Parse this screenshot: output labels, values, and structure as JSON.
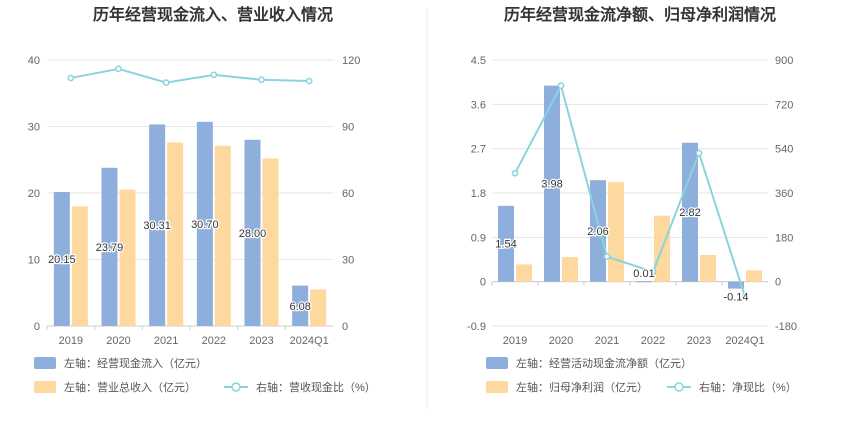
{
  "chart_data": [
    {
      "type": "bar+line",
      "title": "历年经营现金流入、营业收入情况",
      "categories": [
        "2019",
        "2020",
        "2021",
        "2022",
        "2023",
        "2024Q1"
      ],
      "left_axis": {
        "min": 0,
        "max": 40,
        "ticks": [
          "0",
          "10",
          "20",
          "30",
          "40"
        ]
      },
      "right_axis": {
        "min": 0,
        "max": 120,
        "ticks": [
          "0",
          "30",
          "60",
          "90",
          "120"
        ]
      },
      "series": [
        {
          "name": "左轴：经营现金流入（亿元）",
          "type": "bar",
          "axis": "left",
          "color": "#8eaedb",
          "values": [
            20.15,
            23.79,
            30.31,
            30.7,
            28.0,
            6.08
          ],
          "labels": [
            "20.15",
            "23.79",
            "30.31",
            "30.70",
            "28.00",
            "6.08"
          ]
        },
        {
          "name": "左轴：营业总收入（亿元）",
          "type": "bar",
          "axis": "left",
          "color": "#fdd89f",
          "values": [
            18.0,
            20.5,
            27.6,
            27.1,
            25.2,
            5.5
          ]
        },
        {
          "name": "右轴：营收现金比（%）",
          "type": "line",
          "axis": "right",
          "color": "#89d4df",
          "values": [
            111.9,
            116.0,
            109.8,
            113.3,
            111.1,
            110.5
          ]
        }
      ]
    },
    {
      "type": "bar+line",
      "title": "历年经营现金流净额、归母净利润情况",
      "categories": [
        "2019",
        "2020",
        "2021",
        "2022",
        "2023",
        "2024Q1"
      ],
      "left_axis": {
        "min": -0.9,
        "max": 4.5,
        "ticks": [
          "-0.9",
          "0",
          "0.9",
          "1.8",
          "2.7",
          "3.6",
          "4.5"
        ]
      },
      "right_axis": {
        "min": -180,
        "max": 900,
        "ticks": [
          "-180",
          "0",
          "180",
          "360",
          "540",
          "720",
          "900"
        ]
      },
      "series": [
        {
          "name": "左轴：经营活动现金流净额（亿元）",
          "type": "bar",
          "axis": "left",
          "color": "#8eaedb",
          "values": [
            1.54,
            3.98,
            2.06,
            0.01,
            2.82,
            -0.14
          ],
          "labels": [
            "1.54",
            "3.98",
            "2.06",
            "0.01",
            "2.82",
            "-0.14"
          ]
        },
        {
          "name": "左轴：归母净利润（亿元）",
          "type": "bar",
          "axis": "left",
          "color": "#fdd89f",
          "values": [
            0.35,
            0.5,
            2.02,
            1.34,
            0.54,
            0.23
          ]
        },
        {
          "name": "右轴：净现比（%）",
          "type": "line",
          "axis": "right",
          "color": "#89d4df",
          "values": [
            440,
            796,
            102,
            40,
            522,
            -61
          ]
        }
      ]
    }
  ]
}
